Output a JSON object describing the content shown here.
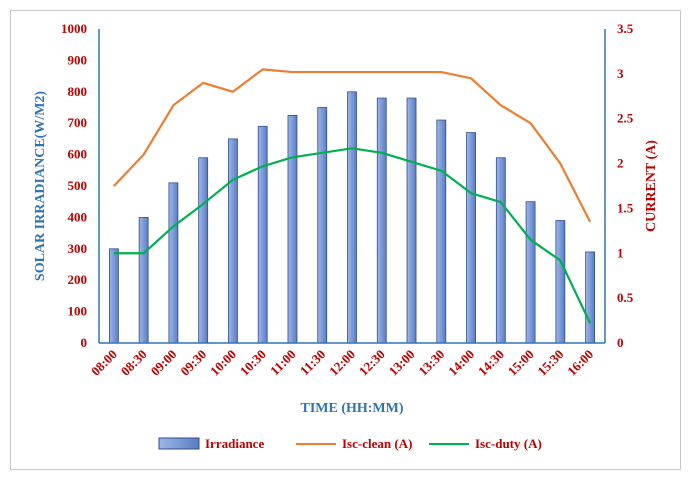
{
  "chart_data": {
    "type": "bar+line",
    "categories": [
      "08:00",
      "08:30",
      "09:00",
      "09:30",
      "10:00",
      "10:30",
      "11:00",
      "11:30",
      "12:00",
      "12:30",
      "13:00",
      "13:30",
      "14:00",
      "14:30",
      "15:00",
      "15:30",
      "16:00"
    ],
    "series": [
      {
        "name": "Irradiance",
        "type": "bar",
        "axis": "left",
        "color": "#4472c4",
        "values": [
          300,
          400,
          510,
          590,
          650,
          690,
          725,
          750,
          800,
          780,
          780,
          710,
          670,
          590,
          450,
          390,
          290
        ]
      },
      {
        "name": "Isc-clean (A)",
        "type": "line",
        "axis": "right",
        "color": "#ed7d31",
        "values": [
          1.75,
          2.1,
          2.65,
          2.9,
          2.8,
          3.05,
          3.02,
          3.02,
          3.02,
          3.02,
          3.02,
          3.02,
          2.95,
          2.65,
          2.45,
          2.0,
          1.35
        ]
      },
      {
        "name": "Isc-duty (A)",
        "type": "line",
        "axis": "right",
        "color": "#00b050",
        "values": [
          1.0,
          1.0,
          1.3,
          1.55,
          1.82,
          1.97,
          2.07,
          2.12,
          2.17,
          2.12,
          2.02,
          1.92,
          1.67,
          1.57,
          1.15,
          0.92,
          0.22
        ]
      }
    ],
    "xlabel": "TIME (HH:MM)",
    "ylabel_left": "SOLAR IRRADIANCE(W/M2)",
    "ylabel_right": "CURRENT (A)",
    "ylim_left": [
      0,
      1000
    ],
    "ylim_right": [
      0,
      3.5
    ],
    "yticks_left": [
      "0",
      "100",
      "200",
      "300",
      "400",
      "500",
      "600",
      "700",
      "800",
      "900",
      "1000"
    ],
    "yticks_right": [
      "0",
      "0.5",
      "1",
      "1.5",
      "2",
      "2.5",
      "3",
      "3.5"
    ],
    "grid": false,
    "legend_position": "bottom"
  }
}
